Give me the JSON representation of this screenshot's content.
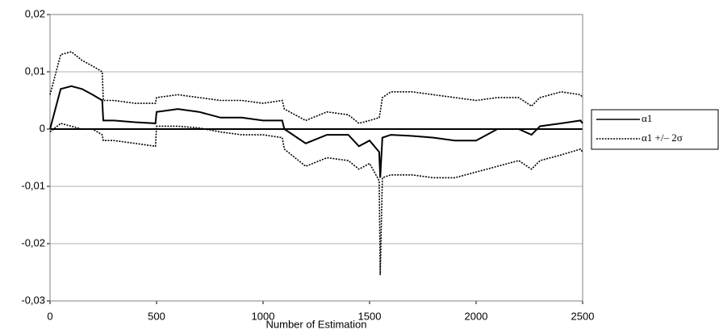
{
  "chart_data": {
    "type": "line",
    "x_label": "Number of Estimation",
    "x": [
      0,
      50,
      100,
      150,
      200,
      245,
      250,
      300,
      400,
      495,
      500,
      600,
      700,
      800,
      900,
      1000,
      1090,
      1100,
      1200,
      1300,
      1400,
      1450,
      1500,
      1545,
      1550,
      1560,
      1600,
      1700,
      1800,
      1900,
      2000,
      2100,
      2200,
      2260,
      2300,
      2400,
      2490,
      2500
    ],
    "series": [
      {
        "name": "α1",
        "color": "#000000",
        "style": "solid",
        "values": [
          0.0,
          0.007,
          0.0075,
          0.007,
          0.006,
          0.005,
          0.0015,
          0.0015,
          0.0012,
          0.001,
          0.003,
          0.0035,
          0.003,
          0.002,
          0.002,
          0.0015,
          0.0015,
          0.0,
          -0.0025,
          -0.001,
          -0.001,
          -0.003,
          -0.002,
          -0.004,
          -0.0085,
          -0.0015,
          -0.001,
          -0.0012,
          -0.0015,
          -0.002,
          -0.002,
          0.0,
          0.0,
          -0.001,
          0.0005,
          0.001,
          0.0015,
          0.001
        ]
      },
      {
        "name": "α1 +/– 2σ",
        "color": "#000000",
        "style": "dotted",
        "upper": [
          0.006,
          0.013,
          0.0135,
          0.012,
          0.011,
          0.01,
          0.005,
          0.005,
          0.0045,
          0.0045,
          0.0055,
          0.006,
          0.0055,
          0.005,
          0.005,
          0.0045,
          0.005,
          0.0035,
          0.0015,
          0.003,
          0.0025,
          0.001,
          0.0015,
          0.002,
          0.003,
          0.0055,
          0.0065,
          0.0065,
          0.006,
          0.0055,
          0.005,
          0.0055,
          0.0055,
          0.004,
          0.0055,
          0.0065,
          0.006,
          0.0055
        ],
        "lower": [
          -0.0005,
          0.001,
          0.0005,
          0.0,
          0.0,
          -0.001,
          -0.002,
          -0.002,
          -0.0025,
          -0.003,
          0.0005,
          0.0005,
          0.0002,
          -0.0005,
          -0.001,
          -0.001,
          -0.0015,
          -0.0035,
          -0.0065,
          -0.005,
          -0.0055,
          -0.007,
          -0.006,
          -0.009,
          -0.0255,
          -0.0085,
          -0.008,
          -0.008,
          -0.0085,
          -0.0085,
          -0.0075,
          -0.0065,
          -0.0055,
          -0.007,
          -0.0055,
          -0.0045,
          -0.0035,
          -0.004
        ]
      }
    ],
    "xlim": [
      0,
      2500
    ],
    "xticks": [
      0,
      500,
      1000,
      1500,
      2000,
      2500
    ],
    "ylim": [
      -0.03,
      0.02
    ],
    "yticks": [
      {
        "value": 0.02,
        "label": "0,02"
      },
      {
        "value": 0.01,
        "label": "0,01"
      },
      0,
      {
        "value": -0.01,
        "label": "-0,01"
      },
      {
        "value": -0.02,
        "label": "-0,02"
      },
      {
        "value": -0.03,
        "label": "-0,03"
      }
    ],
    "grid": true,
    "legend": "right"
  }
}
